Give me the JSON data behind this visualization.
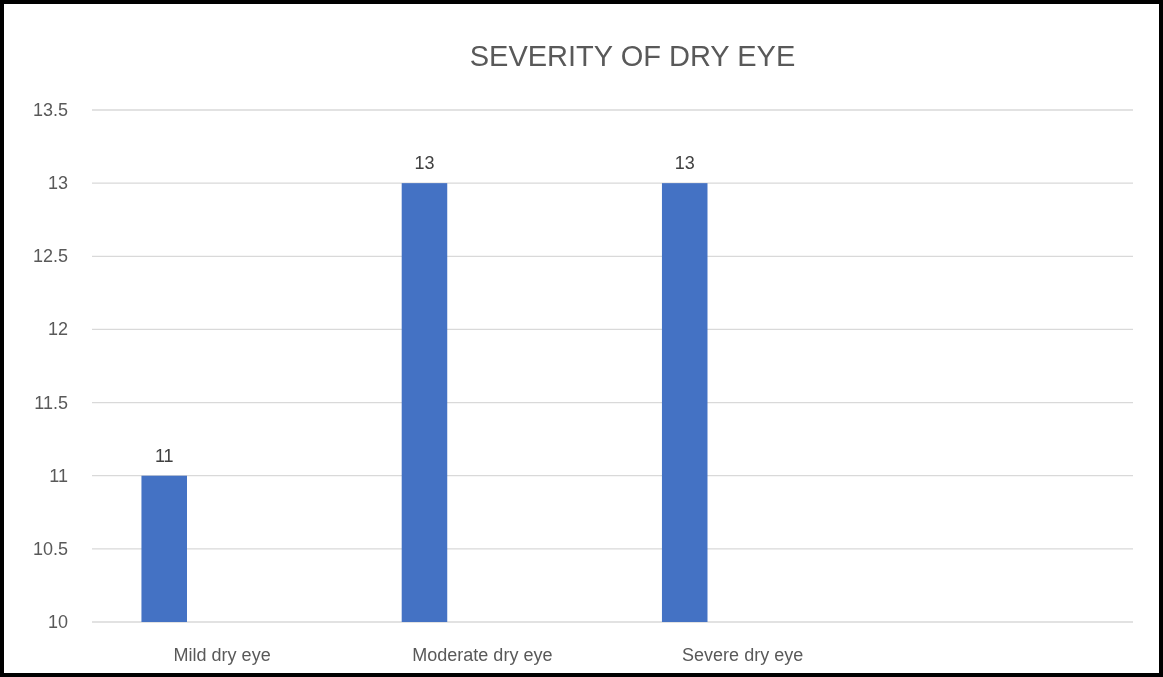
{
  "chart_data": {
    "type": "bar",
    "title": "SEVERITY OF DRY EYE",
    "categories": [
      "Mild dry eye",
      "Moderate dry eye",
      "Severe dry eye",
      null
    ],
    "values": [
      11,
      13,
      13,
      null
    ],
    "color": "#4472c4",
    "ylim": [
      10,
      13.5
    ],
    "yticks": [
      10,
      10.5,
      11,
      11.5,
      12,
      12.5,
      13,
      13.5
    ],
    "grid": "y",
    "data_labels": true
  }
}
